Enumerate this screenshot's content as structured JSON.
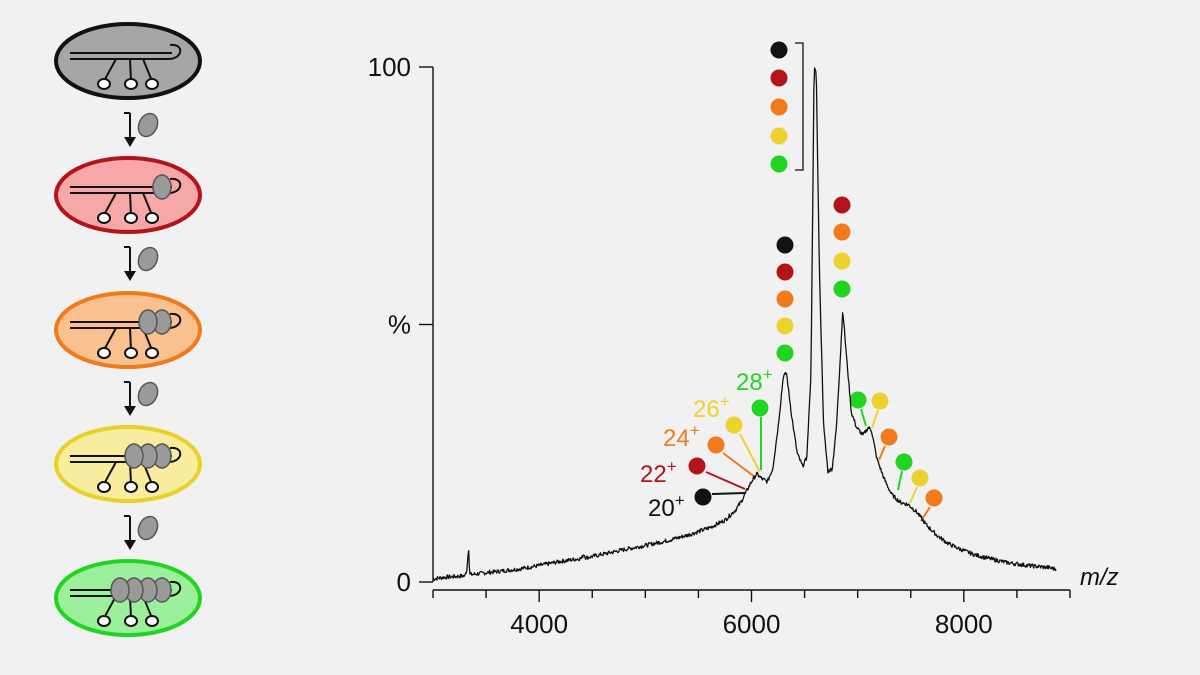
{
  "chart_data": {
    "type": "line",
    "title": "",
    "xlabel": "m/z",
    "ylabel": "%",
    "xlim": [
      3000,
      9000
    ],
    "ylim": [
      0,
      100
    ],
    "x_ticks": [
      4000,
      6000,
      8000
    ],
    "y_ticks": [
      {
        "value": 0,
        "label": "0"
      },
      {
        "value": 50,
        "label": "%"
      },
      {
        "value": 100,
        "label": "100"
      }
    ],
    "grid": false,
    "colors": {
      "black": "#111111",
      "red": "#b3141c",
      "orange": "#f07a1c",
      "yellow": "#ecd22e",
      "green": "#22d422"
    },
    "species_sequence": [
      "black",
      "red",
      "orange",
      "yellow",
      "green"
    ],
    "series_points": [
      [
        3000,
        0.6
      ],
      [
        3100,
        0.9
      ],
      [
        3300,
        1.2
      ],
      [
        3320,
        2.5
      ],
      [
        3335,
        7
      ],
      [
        3345,
        1.4
      ],
      [
        3500,
        1.8
      ],
      [
        3800,
        2.5
      ],
      [
        4000,
        3.2
      ],
      [
        4200,
        4.0
      ],
      [
        4400,
        4.6
      ],
      [
        4420,
        5.5
      ],
      [
        4440,
        4.7
      ],
      [
        4600,
        5.4
      ],
      [
        4800,
        6.3
      ],
      [
        5000,
        7.1
      ],
      [
        5200,
        8.0
      ],
      [
        5400,
        9.1
      ],
      [
        5600,
        10.5
      ],
      [
        5750,
        12.0
      ],
      [
        5850,
        14.0
      ],
      [
        5900,
        15.5
      ],
      [
        5950,
        17.5
      ],
      [
        6000,
        19.5
      ],
      [
        6050,
        21.0
      ],
      [
        6100,
        20.0
      ],
      [
        6150,
        19.5
      ],
      [
        6200,
        22.0
      ],
      [
        6250,
        30.0
      ],
      [
        6300,
        40.0
      ],
      [
        6330,
        40.5
      ],
      [
        6380,
        32.0
      ],
      [
        6430,
        25.0
      ],
      [
        6480,
        22.5
      ],
      [
        6520,
        24.0
      ],
      [
        6560,
        40.0
      ],
      [
        6580,
        80.0
      ],
      [
        6590,
        100.0
      ],
      [
        6610,
        99.0
      ],
      [
        6640,
        60.0
      ],
      [
        6680,
        30.0
      ],
      [
        6720,
        21.5
      ],
      [
        6760,
        22.0
      ],
      [
        6800,
        30.0
      ],
      [
        6840,
        45.0
      ],
      [
        6860,
        53.0
      ],
      [
        6890,
        45.0
      ],
      [
        6940,
        33.0
      ],
      [
        6990,
        30.0
      ],
      [
        7050,
        28.5
      ],
      [
        7100,
        30.0
      ],
      [
        7130,
        29.5
      ],
      [
        7180,
        24.0
      ],
      [
        7250,
        20.0
      ],
      [
        7320,
        17.0
      ],
      [
        7400,
        15.5
      ],
      [
        7480,
        15.0
      ],
      [
        7560,
        13.5
      ],
      [
        7650,
        11.0
      ],
      [
        7750,
        9.0
      ],
      [
        7850,
        7.5
      ],
      [
        7950,
        6.5
      ],
      [
        8100,
        5.3
      ],
      [
        8250,
        4.5
      ],
      [
        8400,
        3.8
      ],
      [
        8600,
        3.2
      ],
      [
        8800,
        2.8
      ],
      [
        8870,
        2.5
      ]
    ],
    "charge_labels": [
      {
        "charge": "20",
        "sup": "+",
        "color": "black"
      },
      {
        "charge": "22",
        "sup": "+",
        "color": "red"
      },
      {
        "charge": "24",
        "sup": "+",
        "color": "orange"
      },
      {
        "charge": "26",
        "sup": "+",
        "color": "yellow"
      },
      {
        "charge": "28",
        "sup": "+",
        "color": "green"
      }
    ],
    "marker_stacks": [
      {
        "mz": 6280,
        "colors": [
          "black",
          "red",
          "orange",
          "yellow",
          "green"
        ],
        "bracket": true
      },
      {
        "mz": 6280,
        "colors": [
          "black",
          "red",
          "orange",
          "yellow",
          "green"
        ],
        "bracket": false
      },
      {
        "mz": 6850,
        "colors": [
          "red",
          "orange",
          "yellow",
          "green"
        ],
        "bracket": false
      }
    ],
    "shoulder_markers": [
      {
        "color": "black",
        "mz": 5550
      },
      {
        "color": "red",
        "mz": 5500
      },
      {
        "color": "orange",
        "mz": 5665
      },
      {
        "color": "yellow",
        "mz": 5815
      },
      {
        "color": "green",
        "mz": 6065
      },
      {
        "color": "green",
        "mz": 7005
      },
      {
        "color": "yellow",
        "mz": 7205
      },
      {
        "color": "orange",
        "mz": 7290
      },
      {
        "color": "green",
        "mz": 7430
      },
      {
        "color": "yellow",
        "mz": 7595
      },
      {
        "color": "orange",
        "mz": 7725
      }
    ]
  },
  "scheme": {
    "stages": [
      {
        "fill": "#a6a6a6",
        "border": "#111111",
        "bound": 0
      },
      {
        "fill": "#f6a7a7",
        "border": "#b3141c",
        "bound": 1
      },
      {
        "fill": "#f9c190",
        "border": "#f07a1c",
        "bound": 2
      },
      {
        "fill": "#f8ed9e",
        "border": "#e8cf2a",
        "bound": 3
      },
      {
        "fill": "#9cf09c",
        "border": "#22d422",
        "bound": 4
      }
    ],
    "ligand_color": "#9a9a9a"
  }
}
